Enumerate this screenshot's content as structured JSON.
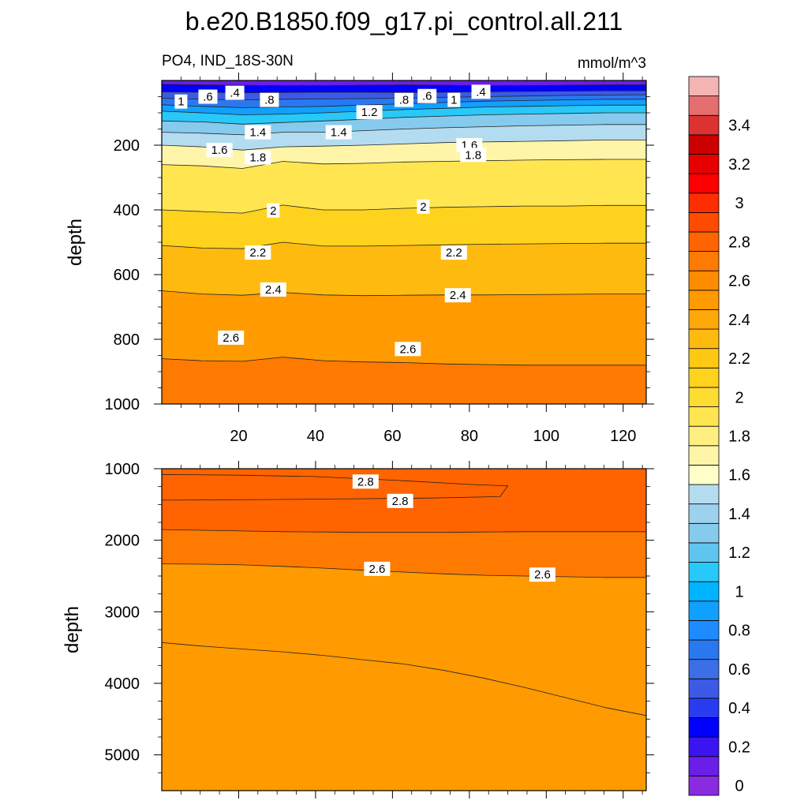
{
  "chart_data": {
    "type": "contour",
    "title": "b.e20.B1850.f09_g17.pi_control.all.211",
    "variable_label": "PO4, IND_18S-30N",
    "units_label": "mmol/m^3",
    "panels": [
      {
        "name": "upper",
        "xlim": [
          0,
          126
        ],
        "ylim": [
          1000,
          0
        ],
        "ylabel": "depth",
        "x_ticks": [
          20,
          40,
          60,
          80,
          100,
          120
        ],
        "x_tick_labels": [
          "20",
          "40",
          "60",
          "80",
          "100",
          "120"
        ],
        "y_ticks": [
          200,
          400,
          600,
          800,
          1000
        ],
        "y_tick_labels": [
          "200",
          "400",
          "600",
          "800",
          "1000"
        ],
        "isolines": [
          {
            "level": 0.2,
            "depth": [
              12,
              14,
              15,
              16,
              16,
              15,
              14,
              15,
              16,
              16,
              15,
              14,
              14
            ]
          },
          {
            "level": 0.4,
            "depth": [
              35,
              36,
              38,
              37,
              36,
              36,
              37,
              36,
              35,
              34,
              33,
              32,
              32
            ]
          },
          {
            "level": 0.6,
            "depth": [
              55,
              58,
              60,
              58,
              57,
              56,
              55,
              52,
              50,
              48,
              46,
              45,
              44
            ]
          },
          {
            "level": 0.8,
            "depth": [
              75,
              80,
              84,
              82,
              80,
              76,
              72,
              68,
              64,
              62,
              60,
              58,
              58
            ]
          },
          {
            "level": 1.0,
            "depth": [
              95,
              100,
              106,
              104,
              100,
              95,
              90,
              86,
              82,
              80,
              78,
              76,
              76
            ]
          },
          {
            "level": 1.2,
            "depth": [
              125,
              128,
              135,
              130,
              125,
              120,
              114,
              110,
              106,
              104,
              102,
              100,
              100
            ]
          },
          {
            "level": 1.4,
            "depth": [
              160,
              163,
              168,
              160,
              160,
              155,
              150,
              146,
              143,
              140,
              138,
              136,
              136
            ]
          },
          {
            "level": 1.6,
            "depth": [
              200,
              205,
              215,
              205,
              203,
              200,
              196,
              192,
              190,
              188,
              186,
              184,
              184
            ]
          },
          {
            "level": 1.8,
            "depth": [
              260,
              264,
              272,
              250,
              258,
              256,
              252,
              250,
              248,
              246,
              245,
              244,
              244
            ]
          },
          {
            "level": 2.0,
            "depth": [
              400,
              405,
              410,
              385,
              400,
              400,
              395,
              392,
              390,
              388,
              388,
              386,
              386
            ]
          },
          {
            "level": 2.2,
            "depth": [
              510,
              518,
              520,
              500,
              512,
              512,
              510,
              508,
              506,
              505,
              504,
              503,
              503
            ]
          },
          {
            "level": 2.4,
            "depth": [
              650,
              660,
              664,
              655,
              663,
              665,
              664,
              663,
              663,
              662,
              661,
              660,
              660
            ]
          },
          {
            "level": 2.6,
            "depth": [
              860,
              866,
              868,
              855,
              866,
              870,
              872,
              876,
              878,
              880,
              880,
              880,
              880
            ]
          }
        ],
        "contour_labels": [
          {
            "text": ".4",
            "x": 19,
            "y": 38
          },
          {
            "text": ".6",
            "x": 12,
            "y": 50
          },
          {
            "text": "1",
            "x": 5,
            "y": 65
          },
          {
            "text": ".8",
            "x": 28,
            "y": 60
          },
          {
            "text": ".8",
            "x": 63,
            "y": 60
          },
          {
            "text": ".6",
            "x": 69,
            "y": 48
          },
          {
            "text": ".4",
            "x": 83,
            "y": 35
          },
          {
            "text": "1",
            "x": 76,
            "y": 60
          },
          {
            "text": "1.2",
            "x": 54,
            "y": 98
          },
          {
            "text": "1.4",
            "x": 25,
            "y": 160
          },
          {
            "text": "1.4",
            "x": 46,
            "y": 160
          },
          {
            "text": "1.6",
            "x": 15,
            "y": 215
          },
          {
            "text": "1.6",
            "x": 80,
            "y": 200
          },
          {
            "text": "1.8",
            "x": 25,
            "y": 238
          },
          {
            "text": "1.8",
            "x": 81,
            "y": 230
          },
          {
            "text": "2",
            "x": 29,
            "y": 402
          },
          {
            "text": "2",
            "x": 68,
            "y": 390
          },
          {
            "text": "2.2",
            "x": 25,
            "y": 532
          },
          {
            "text": "2.2",
            "x": 76,
            "y": 532
          },
          {
            "text": "2.4",
            "x": 29,
            "y": 646
          },
          {
            "text": "2.4",
            "x": 77,
            "y": 664
          },
          {
            "text": "2.6",
            "x": 18,
            "y": 795
          },
          {
            "text": "2.6",
            "x": 64,
            "y": 830
          }
        ]
      },
      {
        "name": "lower",
        "xlim": [
          0,
          126
        ],
        "ylim": [
          5500,
          1000
        ],
        "ylabel": "depth",
        "x_ticks": [
          20,
          40,
          60,
          80,
          100,
          120
        ],
        "x_tick_labels": [
          "",
          "",
          "",
          "",
          "",
          ""
        ],
        "y_ticks": [
          1000,
          2000,
          3000,
          4000,
          5000
        ],
        "y_tick_labels": [
          "1000",
          "2000",
          "3000",
          "4000",
          "5000"
        ],
        "regions": [
          {
            "level": 2.8,
            "polygon": [
              [
                0,
                1080
              ],
              [
                20,
                1090
              ],
              [
                40,
                1110
              ],
              [
                60,
                1160
              ],
              [
                80,
                1220
              ],
              [
                90,
                1240
              ],
              [
                88,
                1390
              ],
              [
                70,
                1410
              ],
              [
                50,
                1420
              ],
              [
                30,
                1430
              ],
              [
                0,
                1440
              ]
            ]
          }
        ],
        "isolines": [
          {
            "level": 2.7,
            "depth": [
              1850,
              1860,
              1870,
              1880,
              1885,
              1890,
              1890,
              1890,
              1885,
              1880,
              1880,
              1880,
              1880
            ]
          },
          {
            "level": 2.6,
            "depth": [
              2330,
              2335,
              2345,
              2365,
              2390,
              2420,
              2445,
              2470,
              2490,
              2500,
              2510,
              2520,
              2520
            ]
          },
          {
            "level": 2.5,
            "depth": [
              3430,
              3480,
              3520,
              3560,
              3610,
              3670,
              3730,
              3820,
              3930,
              4060,
              4200,
              4340,
              4450
            ]
          }
        ],
        "contour_labels": [
          {
            "text": "2.8",
            "x": 53,
            "y": 1180
          },
          {
            "text": "2.8",
            "x": 62,
            "y": 1450
          },
          {
            "text": "2.6",
            "x": 56,
            "y": 2400
          },
          {
            "text": "2.6",
            "x": 99,
            "y": 2480
          }
        ]
      }
    ],
    "colorbar": {
      "levels": [
        0,
        0.2,
        0.4,
        0.6,
        0.8,
        1,
        1.2,
        1.4,
        1.6,
        1.8,
        2,
        2.2,
        2.4,
        2.6,
        2.8,
        3,
        3.2,
        3.4
      ],
      "tick_labels": [
        "0",
        "0.2",
        "0.4",
        "0.6",
        "0.8",
        "1",
        "1.2",
        "1.4",
        "1.6",
        "1.8",
        "2",
        "2.2",
        "2.4",
        "2.6",
        "2.8",
        "3",
        "3.2",
        "3.4"
      ],
      "colors": [
        "#8a2be2",
        "#6a1ee8",
        "#3c14f0",
        "#0000ff",
        "#2a3cf0",
        "#3c5ae6",
        "#3c6ee6",
        "#2a78f0",
        "#1e8cff",
        "#10a0ff",
        "#00b4ff",
        "#28c8f8",
        "#60c4f0",
        "#86cbee",
        "#9cd2ee",
        "#b4dcf0",
        "#ffffc8",
        "#fff5a8",
        "#ffef80",
        "#ffe650",
        "#ffdc32",
        "#ffd21e",
        "#ffc814",
        "#ffba10",
        "#ffa80a",
        "#ff9a00",
        "#ff8c00",
        "#ff7a00",
        "#ff6400",
        "#ff4b00",
        "#ff2d00",
        "#ff0000",
        "#e60000",
        "#cd0000",
        "#dc3232",
        "#e66e6e",
        "#f5b4b4"
      ]
    }
  }
}
